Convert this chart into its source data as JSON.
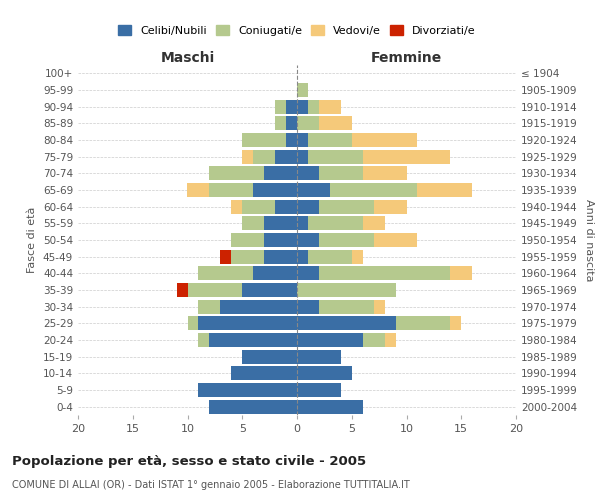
{
  "age_groups": [
    "0-4",
    "5-9",
    "10-14",
    "15-19",
    "20-24",
    "25-29",
    "30-34",
    "35-39",
    "40-44",
    "45-49",
    "50-54",
    "55-59",
    "60-64",
    "65-69",
    "70-74",
    "75-79",
    "80-84",
    "85-89",
    "90-94",
    "95-99",
    "100+"
  ],
  "birth_years": [
    "2000-2004",
    "1995-1999",
    "1990-1994",
    "1985-1989",
    "1980-1984",
    "1975-1979",
    "1970-1974",
    "1965-1969",
    "1960-1964",
    "1955-1959",
    "1950-1954",
    "1945-1949",
    "1940-1944",
    "1935-1939",
    "1930-1934",
    "1925-1929",
    "1920-1924",
    "1915-1919",
    "1910-1914",
    "1905-1909",
    "≤ 1904"
  ],
  "colors": {
    "celibi": "#3a6ea5",
    "coniugati": "#b5c98e",
    "vedovi": "#f5c97a",
    "divorziati": "#cc2200"
  },
  "males": {
    "celibi": [
      8,
      9,
      6,
      5,
      8,
      9,
      7,
      5,
      4,
      3,
      3,
      3,
      2,
      4,
      3,
      2,
      1,
      1,
      1,
      0,
      0
    ],
    "coniugati": [
      0,
      0,
      0,
      0,
      1,
      1,
      2,
      5,
      5,
      3,
      3,
      2,
      3,
      4,
      5,
      2,
      4,
      1,
      1,
      0,
      0
    ],
    "vedovi": [
      0,
      0,
      0,
      0,
      0,
      0,
      0,
      0,
      0,
      0,
      0,
      0,
      1,
      2,
      0,
      1,
      0,
      0,
      0,
      0,
      0
    ],
    "divorziati": [
      0,
      0,
      0,
      0,
      0,
      0,
      0,
      1,
      0,
      1,
      0,
      0,
      0,
      0,
      0,
      0,
      0,
      0,
      0,
      0,
      0
    ]
  },
  "females": {
    "nubili": [
      6,
      4,
      5,
      4,
      6,
      9,
      2,
      0,
      2,
      1,
      2,
      1,
      2,
      3,
      2,
      1,
      1,
      0,
      1,
      0,
      0
    ],
    "coniugate": [
      0,
      0,
      0,
      0,
      2,
      5,
      5,
      9,
      12,
      4,
      5,
      5,
      5,
      8,
      4,
      5,
      4,
      2,
      1,
      1,
      0
    ],
    "vedove": [
      0,
      0,
      0,
      0,
      1,
      1,
      1,
      0,
      2,
      1,
      4,
      2,
      3,
      5,
      4,
      8,
      6,
      3,
      2,
      0,
      0
    ],
    "divorziate": [
      0,
      0,
      0,
      0,
      0,
      0,
      0,
      0,
      0,
      0,
      0,
      0,
      0,
      0,
      0,
      0,
      0,
      0,
      0,
      0,
      0
    ]
  },
  "xlim": 20,
  "title": "Popolazione per età, sesso e stato civile - 2005",
  "subtitle": "COMUNE DI ALLAI (OR) - Dati ISTAT 1° gennaio 2005 - Elaborazione TUTTITALIA.IT",
  "xlabel_left": "Maschi",
  "xlabel_right": "Femmine",
  "ylabel_left": "Fasce di età",
  "ylabel_right": "Anni di nascita",
  "legend_labels": [
    "Celibi/Nubili",
    "Coniugati/e",
    "Vedovi/e",
    "Divorziati/e"
  ]
}
